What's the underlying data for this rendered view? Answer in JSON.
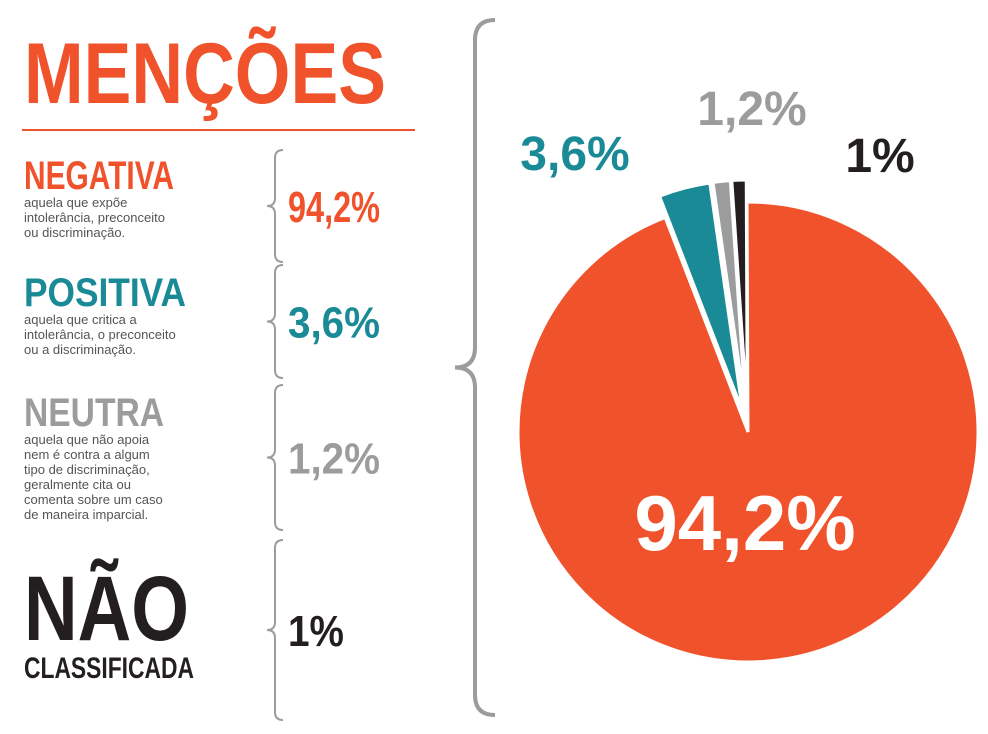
{
  "title": "MENÇÕES",
  "chart_data": {
    "type": "pie",
    "values": [
      94.2,
      3.6,
      1.2,
      1
    ],
    "value_labels": [
      "94,2%",
      "3,6%",
      "1,2%",
      "1%"
    ],
    "colors": [
      "#f0532b",
      "#1a8a96",
      "#9a9c9d",
      "#231f20"
    ]
  },
  "legend": [
    {
      "title_lines": [
        "NEGATIVA"
      ],
      "description_lines": [
        "aquela que expõe",
        "intolerância, preconceito",
        "ou discriminação."
      ]
    },
    {
      "title_lines": [
        "POSITIVA"
      ],
      "description_lines": [
        "aquela que critica a",
        "intolerância, o preconceito",
        "ou a discriminação."
      ]
    },
    {
      "title_lines": [
        "NEUTRA"
      ],
      "description_lines": [
        "aquela que não apoia",
        "nem é contra a algum",
        "tipo de discriminação,",
        "geralmente cita ou",
        "comenta sobre um caso",
        "de maneira imparcial."
      ]
    },
    {
      "title_lines": [
        "NÃO",
        "CLASSIFICADA"
      ],
      "description_lines": []
    }
  ]
}
